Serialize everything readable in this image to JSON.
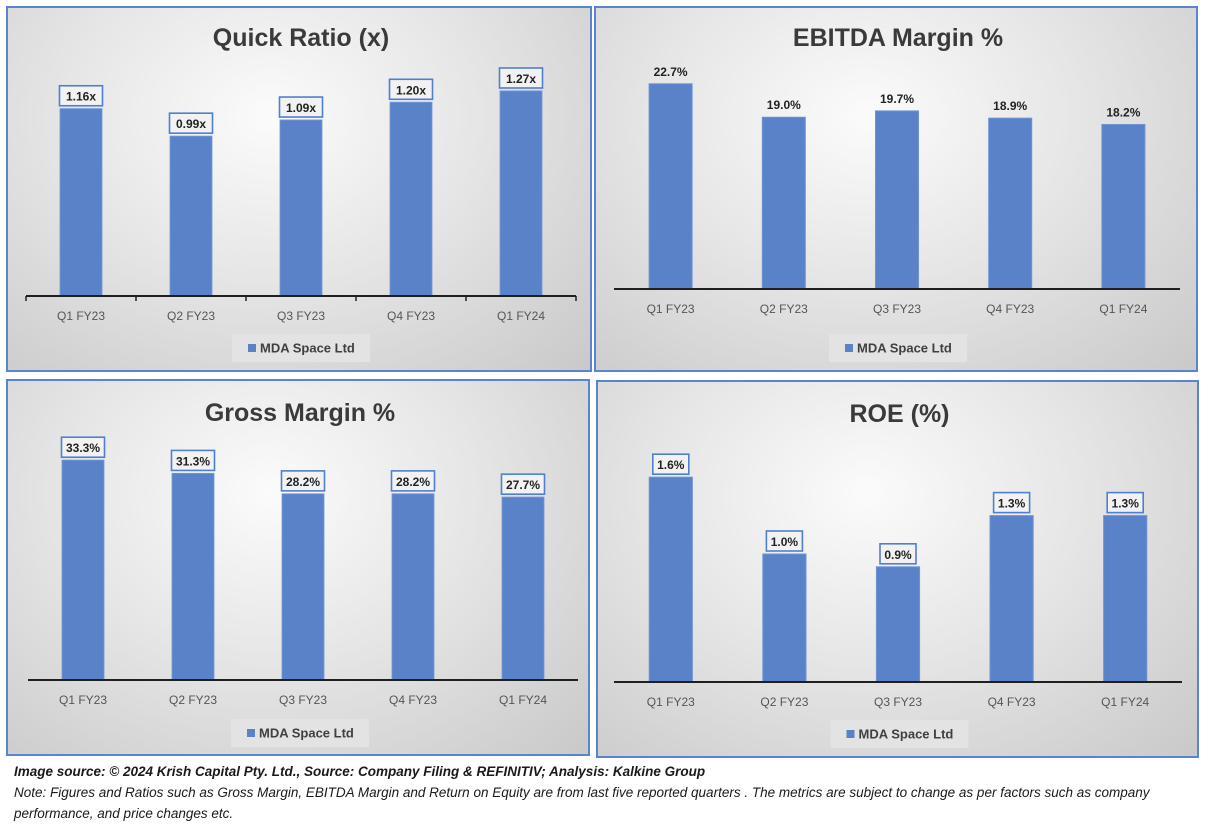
{
  "chart_data": [
    {
      "id": "quick-ratio",
      "type": "bar",
      "title": "Quick Ratio (x)",
      "categories": [
        "Q1 FY23",
        "Q2 FY23",
        "Q3 FY23",
        "Q4 FY23",
        "Q1 FY24"
      ],
      "series": [
        {
          "name": "MDA Space Ltd",
          "values": [
            1.16,
            0.99,
            1.09,
            1.2,
            1.27
          ]
        }
      ],
      "data_labels": [
        "1.16x",
        "0.99x",
        "1.09x",
        "1.20x",
        "1.27x"
      ],
      "data_label_boxed": true,
      "axis_ticks": true,
      "xlabel": "",
      "ylabel": "",
      "ylim": [
        0,
        1.4
      ],
      "grid": false,
      "legend": "bottom",
      "bar_color": "#5a82c9"
    },
    {
      "id": "ebitda-margin",
      "type": "bar",
      "title": "EBITDA Margin %",
      "categories": [
        "Q1 FY23",
        "Q2 FY23",
        "Q3 FY23",
        "Q4 FY23",
        "Q1 FY24"
      ],
      "series": [
        {
          "name": "MDA Space Ltd",
          "values": [
            22.7,
            19.0,
            19.7,
            18.9,
            18.2
          ]
        }
      ],
      "data_labels": [
        "22.7%",
        "19.0%",
        "19.7%",
        "18.9%",
        "18.2%"
      ],
      "data_label_boxed": false,
      "axis_ticks": false,
      "xlabel": "",
      "ylabel": "",
      "ylim": [
        0,
        25
      ],
      "grid": false,
      "legend": "bottom",
      "bar_color": "#5a82c9"
    },
    {
      "id": "gross-margin",
      "type": "bar",
      "title": "Gross Margin %",
      "categories": [
        "Q1 FY23",
        "Q2 FY23",
        "Q3 FY23",
        "Q4 FY23",
        "Q1 FY24"
      ],
      "series": [
        {
          "name": "MDA Space Ltd",
          "values": [
            33.3,
            31.3,
            28.2,
            28.2,
            27.7
          ]
        }
      ],
      "data_labels": [
        "33.3%",
        "31.3%",
        "28.2%",
        "28.2%",
        "27.7%"
      ],
      "data_label_boxed": true,
      "axis_ticks": false,
      "xlabel": "",
      "ylabel": "",
      "ylim": [
        0,
        35
      ],
      "grid": false,
      "legend": "bottom",
      "bar_color": "#5a82c9"
    },
    {
      "id": "roe",
      "type": "bar",
      "title": "ROE (%)",
      "categories": [
        "Q1 FY23",
        "Q2 FY23",
        "Q3 FY23",
        "Q4 FY23",
        "Q1 FY24"
      ],
      "series": [
        {
          "name": "MDA Space Ltd",
          "values": [
            1.6,
            1.0,
            0.9,
            1.3,
            1.3
          ]
        }
      ],
      "data_labels": [
        "1.6%",
        "1.0%",
        "0.9%",
        "1.3%",
        "1.3%"
      ],
      "data_label_boxed": true,
      "axis_ticks": false,
      "xlabel": "",
      "ylabel": "",
      "ylim": [
        0,
        2.0
      ],
      "grid": false,
      "legend": "bottom",
      "bar_color": "#5a82c9"
    }
  ],
  "footer": {
    "source": "Image source: © 2024 Krish Capital Pty. Ltd., Source: Company Filing & REFINITIV; Analysis: Kalkine Group",
    "note": "Note: Figures and Ratios such as  Gross Margin, EBITDA Margin and Return on Equity are from last   five reported  quarters . The metrics are subject to change as per factors such as company performance, and price changes etc."
  },
  "colors": {
    "panel_border": "#5b84cf",
    "bar": "#5a82c9",
    "axis": "#1f1f1f"
  }
}
